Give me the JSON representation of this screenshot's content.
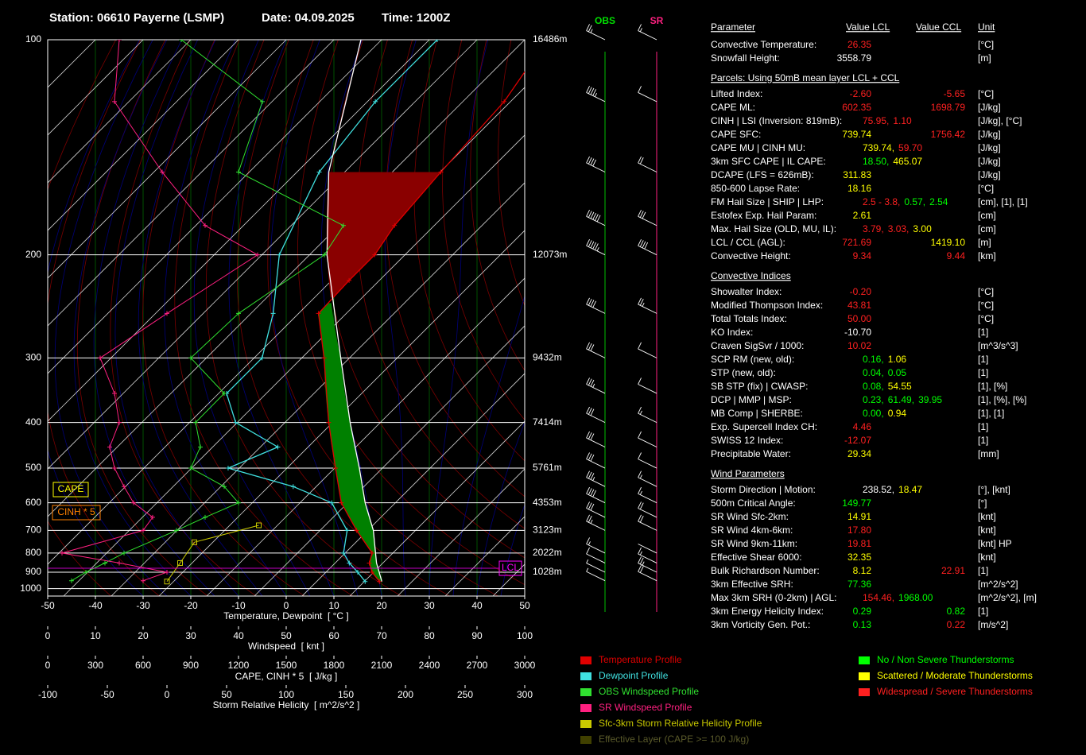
{
  "header": {
    "station": "Station: 06610 Payerne (LSMP)",
    "date": "Date: 04.09.2025",
    "time": "Time: 1200Z"
  },
  "chart_data": {
    "type": "skewt",
    "xlabel": "Temperature, Dewpoint  [ °C ]",
    "xlim": [
      -50,
      50
    ],
    "xticks": [
      -50,
      -40,
      -30,
      -20,
      -10,
      0,
      10,
      20,
      30,
      40,
      50
    ],
    "ylim": [
      100,
      1050
    ],
    "yticks": [
      100,
      200,
      300,
      400,
      500,
      600,
      700,
      800,
      900,
      1000
    ],
    "height_labels": [
      "16486m",
      "12073m",
      "9432m",
      "7414m",
      "5761m",
      "4353m",
      "3123m",
      "2022m",
      "1028m",
      null
    ],
    "grid": true,
    "wind_axis": {
      "label": "Windspeed  [ knt ]",
      "lim": [
        0,
        100
      ],
      "ticks": [
        0,
        10,
        20,
        30,
        40,
        50,
        60,
        70,
        80,
        90,
        100
      ]
    },
    "cape_axis": {
      "label": "CAPE, CINH * 5  [ J/kg ]",
      "lim": [
        0,
        3000
      ],
      "ticks": [
        0,
        300,
        600,
        900,
        1200,
        1500,
        1800,
        2100,
        2400,
        2700,
        3000
      ]
    },
    "srh_axis": {
      "label": "Storm Relative Helicity  [ m^2/s^2 ]",
      "lim": [
        -100,
        300
      ],
      "ticks": [
        -100,
        -50,
        0,
        50,
        100,
        150,
        200,
        250,
        300
      ]
    },
    "series": [
      {
        "name": "Temperature Profile",
        "color": "#e00000",
        "marker": "+",
        "pressure": [
          955,
          900,
          850,
          800,
          700,
          600,
          500,
          400,
          300,
          250,
          220,
          200,
          180,
          150,
          120,
          100
        ],
        "values": [
          16.5,
          13,
          10.5,
          9,
          1,
          -8,
          -16.5,
          -27.5,
          -42,
          -52.5,
          -53,
          -53,
          -55,
          -56.5,
          -58,
          -62
        ]
      },
      {
        "name": "Dewpoint Profile",
        "color": "#40e0e0",
        "marker": "+",
        "pressure": [
          955,
          900,
          850,
          800,
          700,
          600,
          550,
          500,
          450,
          400,
          350,
          300,
          250,
          200,
          150,
          120,
          100
        ],
        "values": [
          13.5,
          10,
          6.3,
          3,
          -1,
          -10,
          -21.5,
          -39,
          -33,
          -47,
          -55,
          -55,
          -62,
          -73,
          -82,
          -85,
          -85
        ]
      },
      {
        "color": "#ffffff",
        "pressure": [
          955,
          850,
          700,
          600,
          500,
          400,
          300,
          200,
          150,
          100
        ],
        "values": [
          17,
          12,
          4.5,
          -3,
          -11.5,
          -23,
          -38.5,
          -63,
          -80,
          -101
        ]
      },
      {
        "name": "OBS Windspeed Profile",
        "color": "#30e030",
        "marker": "+",
        "axis": "wind",
        "pressure": [
          950,
          900,
          850,
          800,
          700,
          650,
          600,
          550,
          500,
          450,
          400,
          350,
          300,
          250,
          200,
          180,
          150,
          120,
          100
        ],
        "values": [
          5,
          8,
          12,
          16,
          27,
          33,
          40,
          37,
          30,
          32,
          31,
          37,
          30,
          40,
          58,
          62,
          40,
          45,
          28
        ]
      },
      {
        "name": "SR Windspeed Profile",
        "color": "#ff2080",
        "marker": "+",
        "axis": "wind",
        "pressure": [
          950,
          900,
          850,
          800,
          700,
          650,
          600,
          550,
          500,
          450,
          400,
          350,
          300,
          250,
          200,
          180,
          150,
          120,
          100
        ],
        "values": [
          20,
          25,
          15,
          3,
          20,
          22,
          18,
          16,
          14,
          13,
          15,
          14,
          11,
          25,
          44,
          33,
          24,
          14,
          15
        ]
      },
      {
        "name": "Sfc-3km Storm Relative Helicity Profile",
        "color": "#c8c800",
        "marker": "square",
        "axis": "srh",
        "pressure": [
          955,
          850,
          750,
          680
        ],
        "values": [
          0,
          11,
          23,
          77
        ]
      }
    ],
    "effective_layer": {
      "name": "Effective Layer (CAPE >= 100 J/kg)",
      "color": "#404000",
      "bottom": 960,
      "top": 850
    },
    "lcl": {
      "label": "LCL",
      "pressure": 878
    },
    "cape_label": "CAPE",
    "cinh_label": "CINH * 5"
  },
  "wind_profile": {
    "obs_label": "OBS",
    "sr_label": "SR"
  },
  "parameters": {
    "columns": [
      "Parameter",
      "Value LCL",
      "Value CCL",
      "Unit"
    ],
    "sections": [
      {
        "rows": [
          {
            "label": "Convective Temperature:",
            "lcl": [
              {
                "text": "26.35",
                "color": "#ff2020"
              }
            ],
            "ccl": [],
            "unit": "[°C]"
          },
          {
            "label": "Snowfall Height:",
            "lcl": [
              {
                "text": "3558.79",
                "color": "#ffffff"
              }
            ],
            "ccl": [],
            "unit": "[m]"
          }
        ]
      },
      {
        "title": "Parcels: Using 50mB mean layer LCL + CCL",
        "rows": [
          {
            "label": "Lifted Index:",
            "lcl": [
              {
                "text": "-2.60",
                "color": "#ff2020"
              }
            ],
            "ccl": [
              {
                "text": "-5.65",
                "color": "#ff2020"
              }
            ],
            "unit": "[°C]"
          },
          {
            "label": "CAPE ML:",
            "lcl": [
              {
                "text": "602.35",
                "color": "#ff2020"
              }
            ],
            "ccl": [
              {
                "text": "1698.79",
                "color": "#ff2020"
              }
            ],
            "unit": "[J/kg]"
          },
          {
            "label": "CINH | LSI (Inversion: 819mB):",
            "lcl": [
              {
                "text": "75.95,",
                "color": "#ff2020"
              },
              {
                "text": "1.10",
                "color": "#ff2020"
              }
            ],
            "ccl": [],
            "unit": "[J/kg], [°C]"
          },
          {
            "label": "CAPE SFC:",
            "lcl": [
              {
                "text": "739.74",
                "color": "#ffff00"
              }
            ],
            "ccl": [
              {
                "text": "1756.42",
                "color": "#ff2020"
              }
            ],
            "unit": "[J/kg]"
          },
          {
            "label": "CAPE MU | CINH MU:",
            "lcl": [
              {
                "text": "739.74,",
                "color": "#ffff00"
              },
              {
                "text": "59.70",
                "color": "#ff2020"
              }
            ],
            "ccl": [],
            "unit": "[J/kg]"
          },
          {
            "label": "3km SFC CAPE | IL CAPE:",
            "lcl": [
              {
                "text": "18.50,",
                "color": "#00ff00"
              },
              {
                "text": "465.07",
                "color": "#ffff00"
              }
            ],
            "ccl": [],
            "unit": "[J/kg]"
          },
          {
            "label": "DCAPE (LFS = 626mB):",
            "lcl": [
              {
                "text": "311.83",
                "color": "#ffff00"
              }
            ],
            "ccl": [],
            "unit": "[J/kg]"
          },
          {
            "label": "850-600 Lapse Rate:",
            "lcl": [
              {
                "text": "18.16",
                "color": "#ffff00"
              }
            ],
            "ccl": [],
            "unit": "[°C]"
          },
          {
            "label": "FM Hail Size | SHIP | LHP:",
            "lcl": [
              {
                "text": "2.5 - 3.8,",
                "color": "#ff2020"
              },
              {
                "text": "0.57,",
                "color": "#00ff00"
              },
              {
                "text": "2.54",
                "color": "#00ff00"
              }
            ],
            "ccl": [],
            "unit": "[cm], [1], [1]"
          },
          {
            "label": "Estofex Exp. Hail Param:",
            "lcl": [
              {
                "text": "2.61",
                "color": "#ffff00"
              }
            ],
            "ccl": [],
            "unit": "[cm]"
          },
          {
            "label": "Max. Hail Size (OLD, MU, IL):",
            "lcl": [
              {
                "text": "3.79,",
                "color": "#ff2020"
              },
              {
                "text": "3.03,",
                "color": "#ff2020"
              },
              {
                "text": "3.00",
                "color": "#ffff00"
              }
            ],
            "ccl": [],
            "unit": "[cm]"
          },
          {
            "label": "LCL / CCL (AGL):",
            "lcl": [
              {
                "text": "721.69",
                "color": "#ff2020"
              }
            ],
            "ccl": [
              {
                "text": "1419.10",
                "color": "#ffff00"
              }
            ],
            "unit": "[m]"
          },
          {
            "label": "Convective Height:",
            "lcl": [
              {
                "text": "9.34",
                "color": "#ff2020"
              }
            ],
            "ccl": [
              {
                "text": "9.44",
                "color": "#ff2020"
              }
            ],
            "unit": "[km]"
          }
        ]
      },
      {
        "title": "Convective Indices",
        "rows": [
          {
            "label": "Showalter Index:",
            "lcl": [
              {
                "text": "-0.20",
                "color": "#ff2020"
              }
            ],
            "ccl": [],
            "unit": "[°C]"
          },
          {
            "label": "Modified Thompson Index:",
            "lcl": [
              {
                "text": "43.81",
                "color": "#ff2020"
              }
            ],
            "ccl": [],
            "unit": "[°C]"
          },
          {
            "label": "Total Totals Index:",
            "lcl": [
              {
                "text": "50.00",
                "color": "#ff2020"
              }
            ],
            "ccl": [],
            "unit": "[°C]"
          },
          {
            "label": "KO Index:",
            "lcl": [
              {
                "text": "-10.70",
                "color": "#ffffff"
              }
            ],
            "ccl": [],
            "unit": "[1]"
          },
          {
            "label": "Craven SigSvr / 1000:",
            "lcl": [
              {
                "text": "10.02",
                "color": "#ff2020"
              }
            ],
            "ccl": [],
            "unit": "[m^3/s^3]"
          },
          {
            "label": "SCP RM (new, old):",
            "lcl": [
              {
                "text": "0.16,",
                "color": "#00ff00"
              },
              {
                "text": "1.06",
                "color": "#ffff00"
              }
            ],
            "ccl": [],
            "unit": "[1]"
          },
          {
            "label": "STP (new, old):",
            "lcl": [
              {
                "text": "0.04,",
                "color": "#00ff00"
              },
              {
                "text": "0.05",
                "color": "#00ff00"
              }
            ],
            "ccl": [],
            "unit": "[1]"
          },
          {
            "label": "SB STP (fix) | CWASP:",
            "lcl": [
              {
                "text": "0.08,",
                "color": "#00ff00"
              },
              {
                "text": "54.55",
                "color": "#ffff00"
              }
            ],
            "ccl": [],
            "unit": "[1], [%]"
          },
          {
            "label": "DCP | MMP | MSP:",
            "lcl": [
              {
                "text": "0.23,",
                "color": "#00ff00"
              },
              {
                "text": "61.49,",
                "color": "#00ff00"
              },
              {
                "text": "39.95",
                "color": "#00ff00"
              }
            ],
            "ccl": [],
            "unit": "[1], [%], [%]"
          },
          {
            "label": "MB Comp | SHERBE:",
            "lcl": [
              {
                "text": "0.00,",
                "color": "#00ff00"
              },
              {
                "text": "0.94",
                "color": "#ffff00"
              }
            ],
            "ccl": [],
            "unit": "[1], [1]"
          },
          {
            "label": "Exp. Supercell Index CH:",
            "lcl": [
              {
                "text": "4.46",
                "color": "#ff2020"
              }
            ],
            "ccl": [],
            "unit": "[1]"
          },
          {
            "label": "SWISS 12 Index:",
            "lcl": [
              {
                "text": "-12.07",
                "color": "#ff2020"
              }
            ],
            "ccl": [],
            "unit": "[1]"
          },
          {
            "label": "Precipitable Water:",
            "lcl": [
              {
                "text": "29.34",
                "color": "#ffff00"
              }
            ],
            "ccl": [],
            "unit": "[mm]"
          }
        ]
      },
      {
        "title": "Wind Parameters",
        "rows": [
          {
            "label": "Storm Direction | Motion:",
            "lcl": [
              {
                "text": "238.52,",
                "color": "#ffffff"
              },
              {
                "text": "18.47",
                "color": "#ffff00"
              }
            ],
            "ccl": [],
            "unit": "[°], [knt]"
          },
          {
            "label": "500m Critical Angle:",
            "lcl": [
              {
                "text": "149.77",
                "color": "#00ff00"
              }
            ],
            "ccl": [],
            "unit": "[°]"
          },
          {
            "label": "SR Wind Sfc-2km:",
            "lcl": [
              {
                "text": "14.91",
                "color": "#ffff00"
              }
            ],
            "ccl": [],
            "unit": "[knt]"
          },
          {
            "label": "SR Wind 4km-6km:",
            "lcl": [
              {
                "text": "17.80",
                "color": "#ff2020"
              }
            ],
            "ccl": [],
            "unit": "[knt]"
          },
          {
            "label": "SR Wind 9km-11km:",
            "lcl": [
              {
                "text": "19.81",
                "color": "#ff2020"
              }
            ],
            "ccl": [],
            "unit": "[knt] HP"
          },
          {
            "label": "Effective Shear 6000:",
            "lcl": [
              {
                "text": "32.35",
                "color": "#ffff00"
              }
            ],
            "ccl": [],
            "unit": "[knt]"
          },
          {
            "label": "Bulk Richardson Number:",
            "lcl": [
              {
                "text": "8.12",
                "color": "#ffff00"
              }
            ],
            "ccl": [
              {
                "text": "22.91",
                "color": "#ff2020"
              }
            ],
            "unit": "[1]"
          },
          {
            "label": "3km Effective SRH:",
            "lcl": [
              {
                "text": "77.36",
                "color": "#00ff00"
              }
            ],
            "ccl": [],
            "unit": "[m^2/s^2]"
          },
          {
            "label": "Max 3km SRH (0-2km) | AGL:",
            "lcl": [
              {
                "text": "154.46,",
                "color": "#ff2020"
              },
              {
                "text": "1968.00",
                "color": "#00ff00"
              }
            ],
            "ccl": [],
            "unit": "[m^2/s^2], [m]"
          },
          {
            "label": "3km Energy Helicity Index:",
            "lcl": [
              {
                "text": "0.29",
                "color": "#00ff00"
              }
            ],
            "ccl": [
              {
                "text": "0.82",
                "color": "#00ff00"
              }
            ],
            "unit": "[1]"
          },
          {
            "label": "3km Vorticity Gen. Pot.:",
            "lcl": [
              {
                "text": "0.13",
                "color": "#00ff00"
              }
            ],
            "ccl": [
              {
                "text": "0.22",
                "color": "#ff2020"
              }
            ],
            "unit": "[m/s^2]"
          }
        ]
      }
    ]
  },
  "color_key": [
    {
      "label": "No / Non Severe Thunderstorms",
      "color": "#00ff00"
    },
    {
      "label": "Scattered / Moderate Thunderstorms",
      "color": "#ffff00"
    },
    {
      "label": "Widespread / Severe Thunderstorms",
      "color": "#ff2020"
    }
  ]
}
